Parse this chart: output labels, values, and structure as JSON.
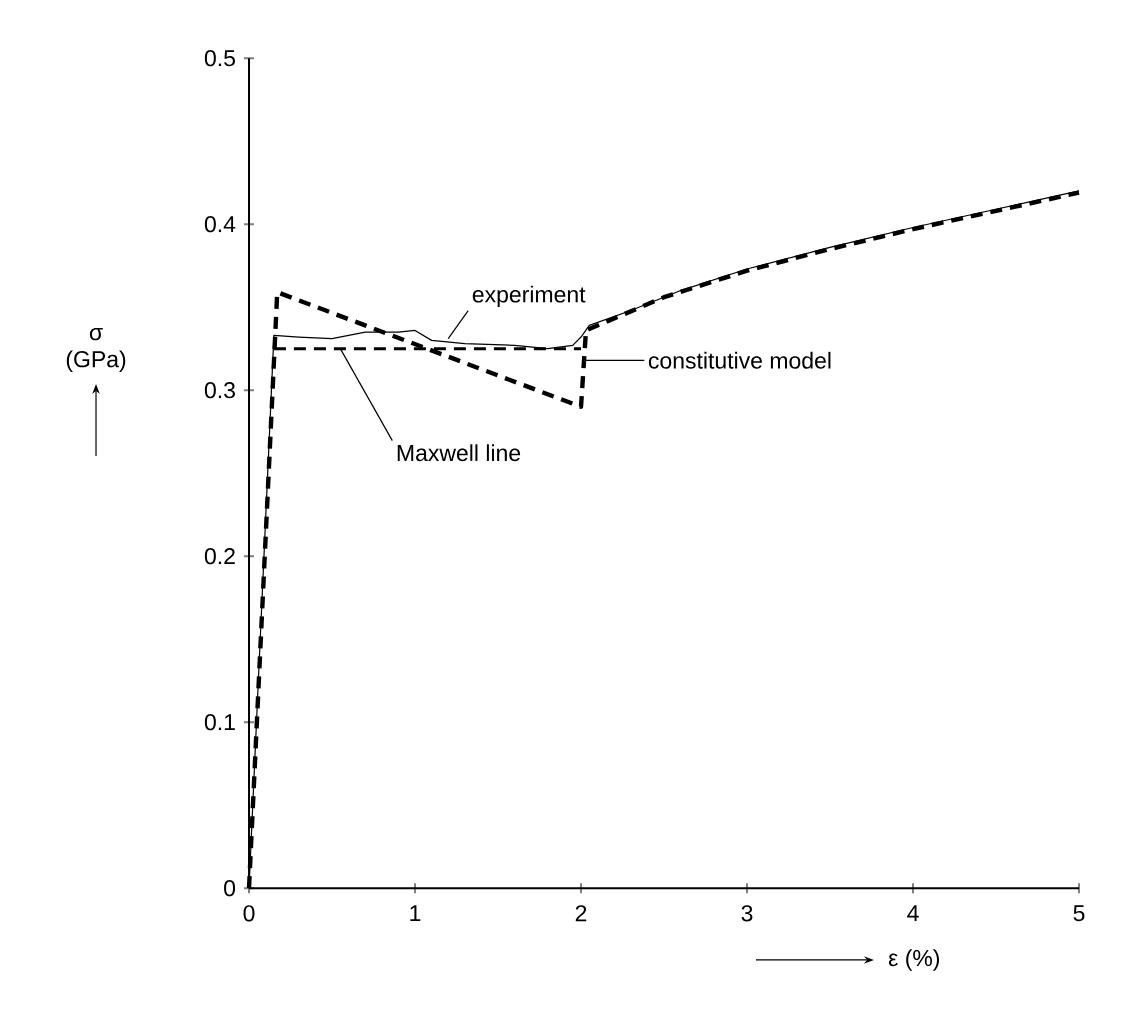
{
  "chart_data": {
    "type": "line",
    "xlabel": "ε (%)",
    "ylabel": "σ (GPa)",
    "xlim": [
      0,
      5
    ],
    "ylim": [
      0,
      0.5
    ],
    "xticks": [
      0,
      1,
      2,
      3,
      4,
      5
    ],
    "yticks": [
      0,
      0.1,
      0.2,
      0.3,
      0.4,
      0.5
    ],
    "grid": false,
    "marker": "none",
    "series": [
      {
        "color": "#000000",
        "line_style": "solid",
        "x": [
          0,
          0.15,
          0.3,
          0.5,
          0.7,
          0.9,
          1.0,
          1.1,
          1.3,
          1.6,
          1.8,
          1.95,
          2.0,
          2.05,
          2.3,
          2.6,
          3.0,
          3.5,
          4.0,
          4.5,
          5.0
        ],
        "values": [
          0,
          0.333,
          0.332,
          0.331,
          0.335,
          0.335,
          0.336,
          0.33,
          0.328,
          0.327,
          0.325,
          0.327,
          0.332,
          0.339,
          0.348,
          0.36,
          0.373,
          0.386,
          0.398,
          0.409,
          0.42
        ]
      },
      {
        "color": "#000000",
        "line_style": "dashed",
        "x": [
          0,
          0.17,
          2.0,
          2.03,
          2.5,
          3.0,
          3.5,
          4.0,
          4.5,
          5.0
        ],
        "values": [
          0,
          0.359,
          0.29,
          0.336,
          0.356,
          0.372,
          0.385,
          0.397,
          0.408,
          0.419
        ]
      },
      {
        "color": "#000000",
        "line_style": "dashed",
        "x": [
          0.15,
          2.0
        ],
        "values": [
          0.325,
          0.325
        ]
      }
    ],
    "annotations": [
      {
        "text": "experiment",
        "x": 1.2,
        "y": 0.331
      },
      {
        "text": "constitutive model",
        "x": 2.02,
        "y": 0.318
      },
      {
        "text": "Maxwell line",
        "x": 0.55,
        "y": 0.325
      }
    ]
  }
}
